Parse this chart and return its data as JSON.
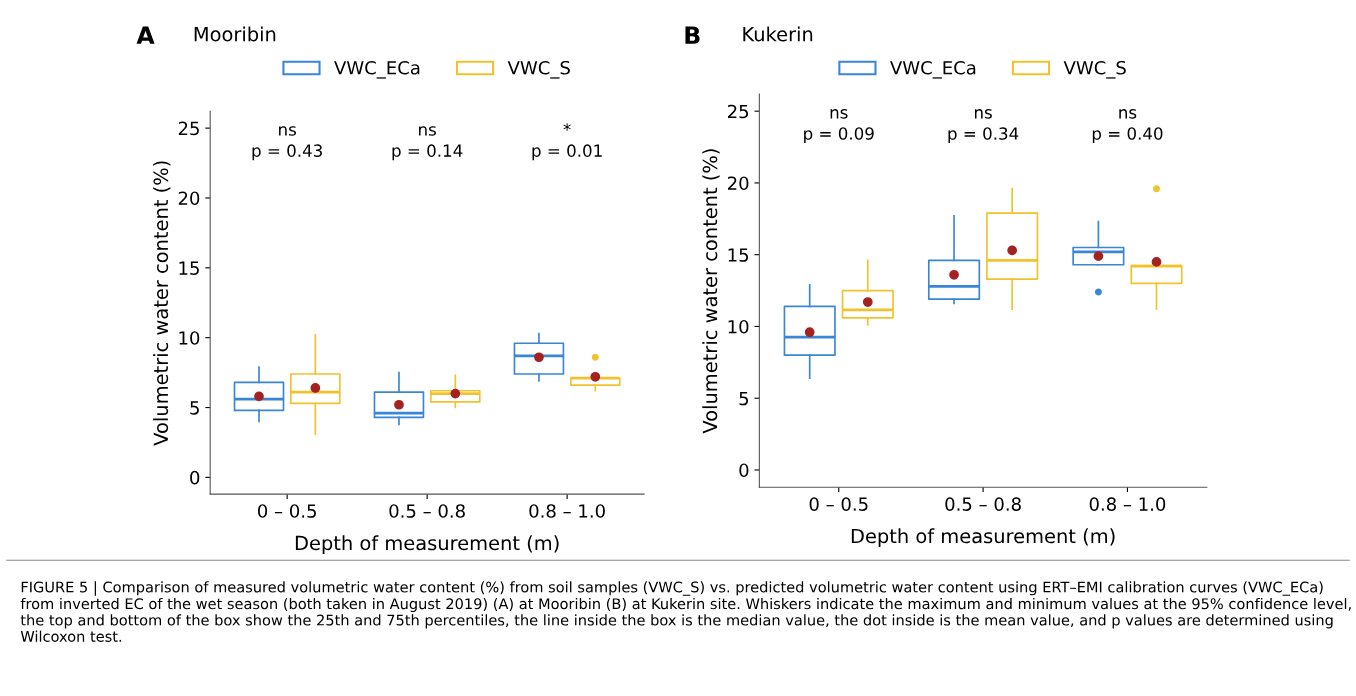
{
  "chart_data": [
    {
      "type": "box",
      "title": "Mooribin",
      "xlabel": "Depth of measurement (m)",
      "ylabel": "Volumetric water content (%)",
      "categories": [
        "0 – 0.5",
        "0.5 – 0.8",
        "0.8 – 1.0"
      ],
      "series": [
        {
          "name": "VWC_ECa",
          "color": "#3a86d6",
          "boxes": [
            {
              "low": 4.0,
              "q1": 4.8,
              "median": 5.6,
              "q3": 6.8,
              "high": 7.9,
              "mean": 5.8
            },
            {
              "low": 3.8,
              "q1": 4.3,
              "median": 4.6,
              "q3": 6.1,
              "high": 7.5,
              "mean": 5.2
            },
            {
              "low": 6.9,
              "q1": 7.4,
              "median": 8.7,
              "q3": 9.6,
              "high": 10.3,
              "mean": 8.6
            }
          ]
        },
        {
          "name": "VWC_S",
          "color": "#f2c12e",
          "boxes": [
            {
              "low": 3.1,
              "q1": 5.3,
              "median": 6.1,
              "q3": 7.4,
              "high": 10.2,
              "mean": 6.4
            },
            {
              "low": 5.0,
              "q1": 5.4,
              "median": 6.0,
              "q3": 6.2,
              "high": 7.3,
              "mean": 6.0
            },
            {
              "low": 6.2,
              "q1": 6.6,
              "median": 7.1,
              "q3": 7.1,
              "high": 7.2,
              "mean": 7.2,
              "outliers": [
                8.6
              ]
            }
          ]
        }
      ],
      "ylim": [
        -1.2,
        26.2
      ],
      "yticks": [
        0,
        5,
        10,
        15,
        20,
        25
      ],
      "grid": false,
      "legend": "top",
      "annotations": [
        "A",
        "ns\np = 0.43",
        "ns\np = 0.14",
        "*\np = 0.01",
        "FIGURE 5 | Comparison of measured volumetric water content (%) from soil samples (VWC_S) vs. predicted volumetric water content using ERT–EMI calibration curves (VWC_ECa) from inverted EC of the wet season (both taken in August 2019) (A) at Mooribin (B) at Kukerin site. Whiskers indicate the maximum and minimum values at the 95% confidence level, the top and bottom of the box show the 25th and 75th percentiles, the line inside the box is the median value, the dot inside is the mean value, and p values are determined using Wilcoxon test."
      ]
    },
    {
      "type": "box",
      "title": "Kukerin",
      "xlabel": "Depth of measurement (m)",
      "ylabel": "Volumetric water content (%)",
      "categories": [
        "0 – 0.5",
        "0.5 – 0.8",
        "0.8 – 1.0"
      ],
      "series": [
        {
          "name": "VWC_ECa",
          "color": "#3a86d6",
          "boxes": [
            {
              "low": 6.4,
              "q1": 8.0,
              "median": 9.25,
              "q3": 11.4,
              "high": 12.9,
              "mean": 9.6
            },
            {
              "low": 11.6,
              "q1": 11.9,
              "median": 12.8,
              "q3": 14.6,
              "high": 17.7,
              "mean": 13.6
            },
            {
              "low": 14.3,
              "q1": 14.3,
              "median": 15.2,
              "q3": 15.5,
              "high": 17.3,
              "mean": 14.9,
              "outliers": [
                12.4
              ]
            }
          ]
        },
        {
          "name": "VWC_S",
          "color": "#f2c12e",
          "boxes": [
            {
              "low": 10.1,
              "q1": 10.6,
              "median": 11.15,
              "q3": 12.5,
              "high": 14.6,
              "mean": 11.7
            },
            {
              "low": 11.2,
              "q1": 13.3,
              "median": 14.6,
              "q3": 17.9,
              "high": 19.6,
              "mean": 15.3
            },
            {
              "low": 11.2,
              "q1": 13.0,
              "median": 14.2,
              "q3": 14.25,
              "high": 14.25,
              "mean": 14.5,
              "outliers": [
                19.6
              ]
            }
          ]
        }
      ],
      "ylim": [
        -1.2,
        26.2
      ],
      "yticks": [
        0,
        5,
        10,
        15,
        20,
        25
      ],
      "grid": false,
      "legend": "top",
      "annotations": [
        "B",
        "ns\np = 0.09",
        "ns\np = 0.34",
        "ns\np = 0.40"
      ]
    }
  ]
}
